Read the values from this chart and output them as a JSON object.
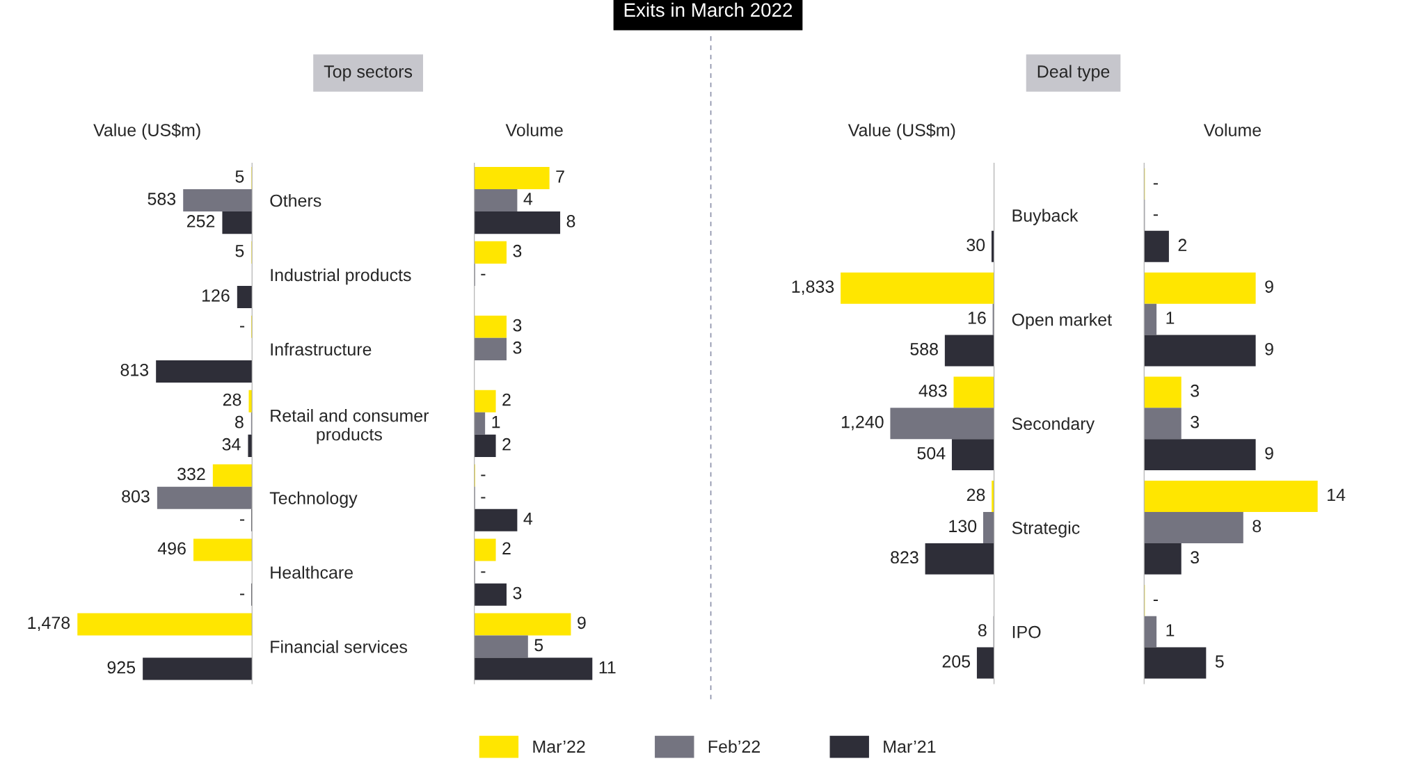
{
  "chart_data": [
    {
      "type": "bar",
      "orientation": "horizontal",
      "title": "Value (US$m)",
      "annotations": [
        "Exits in March 2022",
        "Top sectors"
      ],
      "legend": "bottom",
      "categories": [
        "Others",
        "Industrial products",
        "Infrastructure",
        "Retail and consumer\nproducts",
        "Technology",
        "Healthcare",
        "Financial services"
      ],
      "series": [
        {
          "name": "Mar’22",
          "color": "#ffe600",
          "values": [
            5,
            5,
            0,
            28,
            332,
            496,
            1478
          ],
          "value_labels": [
            "5",
            "5",
            "-",
            "28",
            "332",
            "496",
            "1,478"
          ]
        },
        {
          "name": "Feb’22",
          "color": "#747480",
          "values": [
            583,
            null,
            null,
            8,
            803,
            null,
            null
          ],
          "value_labels": [
            "583",
            null,
            null,
            "8",
            "803",
            null,
            null
          ]
        },
        {
          "name": "Mar’21",
          "color": "#2e2e38",
          "values": [
            252,
            126,
            813,
            34,
            0,
            0,
            925
          ],
          "value_labels": [
            "252",
            "126",
            "813",
            "34",
            "-",
            "-",
            "925"
          ]
        }
      ]
    },
    {
      "type": "bar",
      "orientation": "horizontal",
      "title": "Volume",
      "categories": [
        null,
        null,
        null,
        null,
        null,
        null,
        null
      ],
      "series": [
        {
          "color": "#ffe600",
          "values": [
            7,
            3,
            3,
            2,
            0,
            2,
            9
          ],
          "value_labels": [
            "7",
            "3",
            "3",
            "2",
            "-",
            "2",
            "9"
          ]
        },
        {
          "color": "#747480",
          "values": [
            4,
            0,
            3,
            1,
            0,
            0,
            5
          ],
          "value_labels": [
            "4",
            "-",
            "3",
            "1",
            "-",
            "-",
            "5"
          ]
        },
        {
          "color": "#2e2e38",
          "values": [
            8,
            null,
            null,
            2,
            4,
            3,
            11
          ],
          "value_labels": [
            "8",
            null,
            null,
            "2",
            "4",
            "3",
            "11"
          ]
        }
      ]
    },
    {
      "type": "bar",
      "orientation": "horizontal",
      "title": "Value (US$m)",
      "annotations": [
        "Deal type"
      ],
      "categories": [
        "Buyback",
        "Open market",
        "Secondary",
        "Strategic",
        "IPO"
      ],
      "series": [
        {
          "color": "#ffe600",
          "values": [
            null,
            1833,
            483,
            28,
            null
          ],
          "value_labels": [
            null,
            "1,833",
            "483",
            "28",
            null
          ]
        },
        {
          "color": "#747480",
          "values": [
            null,
            16,
            1240,
            130,
            8
          ],
          "value_labels": [
            null,
            "16",
            "1,240",
            "130",
            "8"
          ]
        },
        {
          "color": "#2e2e38",
          "values": [
            30,
            588,
            504,
            823,
            205
          ],
          "value_labels": [
            "30",
            "588",
            "504",
            "823",
            "205"
          ]
        }
      ]
    },
    {
      "type": "bar",
      "orientation": "horizontal",
      "title": "Volume",
      "categories": [
        null,
        null,
        null,
        null,
        null
      ],
      "series": [
        {
          "color": "#ffe600",
          "values": [
            0,
            9,
            3,
            14,
            0
          ],
          "value_labels": [
            "-",
            "9",
            "3",
            "14",
            "-"
          ]
        },
        {
          "color": "#747480",
          "values": [
            0,
            1,
            3,
            8,
            1
          ],
          "value_labels": [
            "-",
            "1",
            "3",
            "8",
            "1"
          ]
        },
        {
          "color": "#2e2e38",
          "values": [
            2,
            9,
            9,
            3,
            5
          ],
          "value_labels": [
            "2",
            "9",
            "9",
            "3",
            "5"
          ]
        }
      ]
    }
  ]
}
